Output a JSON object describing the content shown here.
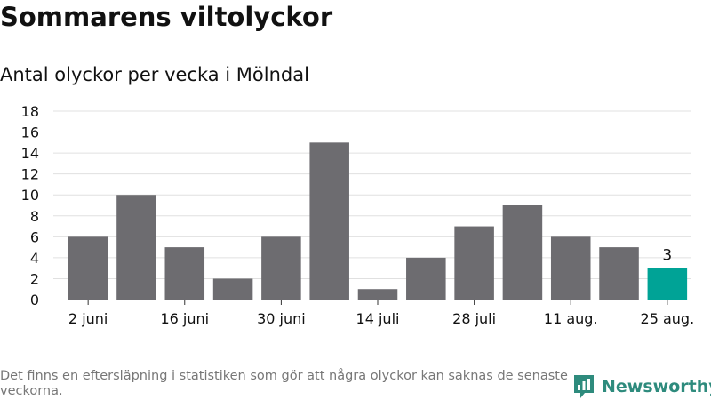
{
  "title": "Sommarens viltolyckor",
  "subtitle": "Antal olyckor per vecka i Mölndal",
  "footnote": "Det finns en eftersläpning i statistiken som gör att några olyckor kan saknas de senaste veckorna.",
  "brand": {
    "name": "Newsworthy",
    "icon": "newsworthy-logo-icon"
  },
  "colors": {
    "bar": "#6d6c70",
    "highlight": "#00a396",
    "grid": "#e0e0e0",
    "brand": "#2e8b7d"
  },
  "chart_data": {
    "type": "bar",
    "title": "Sommarens viltolyckor",
    "subtitle": "Antal olyckor per vecka i Mölndal",
    "values": [
      6,
      10,
      5,
      2,
      6,
      15,
      1,
      4,
      7,
      9,
      6,
      5,
      3
    ],
    "highlighted_index": 12,
    "data_labels": [
      {
        "index": 12,
        "text": "3"
      }
    ],
    "x_tick_labels": [
      {
        "index": 0,
        "text": "2 juni"
      },
      {
        "index": 2,
        "text": "16 juni"
      },
      {
        "index": 4,
        "text": "30 juni"
      },
      {
        "index": 6,
        "text": "14 juli"
      },
      {
        "index": 8,
        "text": "28 juli"
      },
      {
        "index": 10,
        "text": "11 aug."
      },
      {
        "index": 12,
        "text": "25 aug."
      }
    ],
    "y_ticks": [
      0,
      2,
      4,
      6,
      8,
      10,
      12,
      14,
      16,
      18
    ],
    "ylim": [
      0,
      18
    ],
    "xlabel": "",
    "ylabel": "",
    "grid": true,
    "legend": "none"
  }
}
